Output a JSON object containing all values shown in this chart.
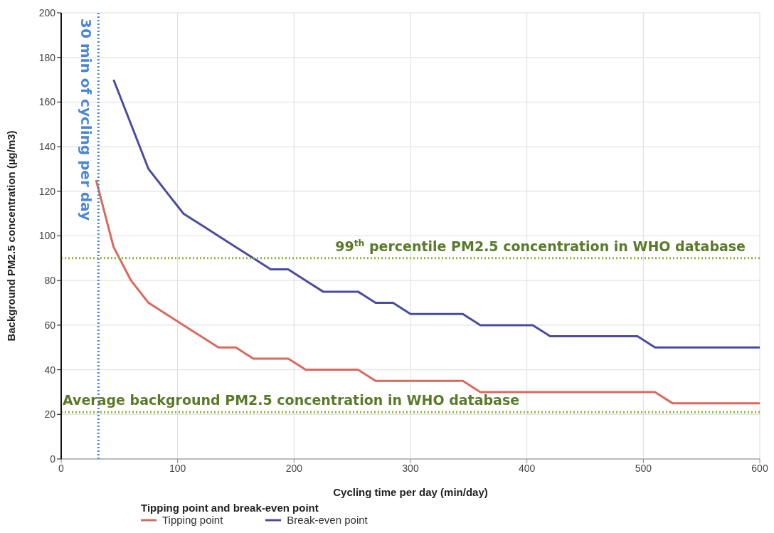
{
  "chart_data": {
    "type": "line",
    "xlabel": "Cycling time per day (min/day)",
    "ylabel": "Background PM2.5 concentration (µg/m3)",
    "legend_title": "Tipping point and break-even point",
    "xlim": [
      0,
      600
    ],
    "xticks": [
      0,
      100,
      200,
      300,
      400,
      500,
      600
    ],
    "ylim": [
      0,
      200
    ],
    "yticks": [
      0,
      20,
      40,
      60,
      80,
      100,
      120,
      140,
      160,
      180,
      200
    ],
    "grid": true,
    "legend": "bottom",
    "marker": "none",
    "line_style": "solid",
    "series": [
      {
        "name": "Tipping point",
        "color": "#d9695f",
        "x": [
          30,
          45,
          60,
          75,
          90,
          105,
          120,
          135,
          150,
          165,
          195,
          210,
          255,
          270,
          345,
          360,
          510,
          525,
          600
        ],
        "values": [
          125,
          95,
          80,
          70,
          65,
          60,
          55,
          50,
          50,
          45,
          45,
          40,
          40,
          35,
          35,
          30,
          30,
          25,
          25
        ]
      },
      {
        "name": "Break-even point",
        "color": "#4b4ba0",
        "x": [
          45,
          60,
          75,
          90,
          105,
          120,
          135,
          150,
          165,
          180,
          195,
          210,
          225,
          255,
          270,
          285,
          300,
          345,
          360,
          405,
          420,
          495,
          510,
          600
        ],
        "values": [
          170,
          150,
          130,
          120,
          110,
          105,
          100,
          95,
          90,
          85,
          85,
          80,
          75,
          75,
          70,
          70,
          65,
          65,
          60,
          60,
          55,
          55,
          50,
          50
        ]
      }
    ],
    "ref_lines": [
      {
        "axis": "x",
        "value": 32,
        "label": "30 min of cycling per day",
        "color": "#4a86d4",
        "line_style": "dotted"
      },
      {
        "axis": "y",
        "value": 90,
        "label": "99$^{th}$ percentile PM2.5 concentration in WHO database",
        "color": "#8db33a",
        "line_style": "dotted"
      },
      {
        "axis": "y",
        "value": 21,
        "label": "Average background PM2.5 concentration in WHO database",
        "color": "#8db33a",
        "line_style": "dotted"
      }
    ]
  }
}
